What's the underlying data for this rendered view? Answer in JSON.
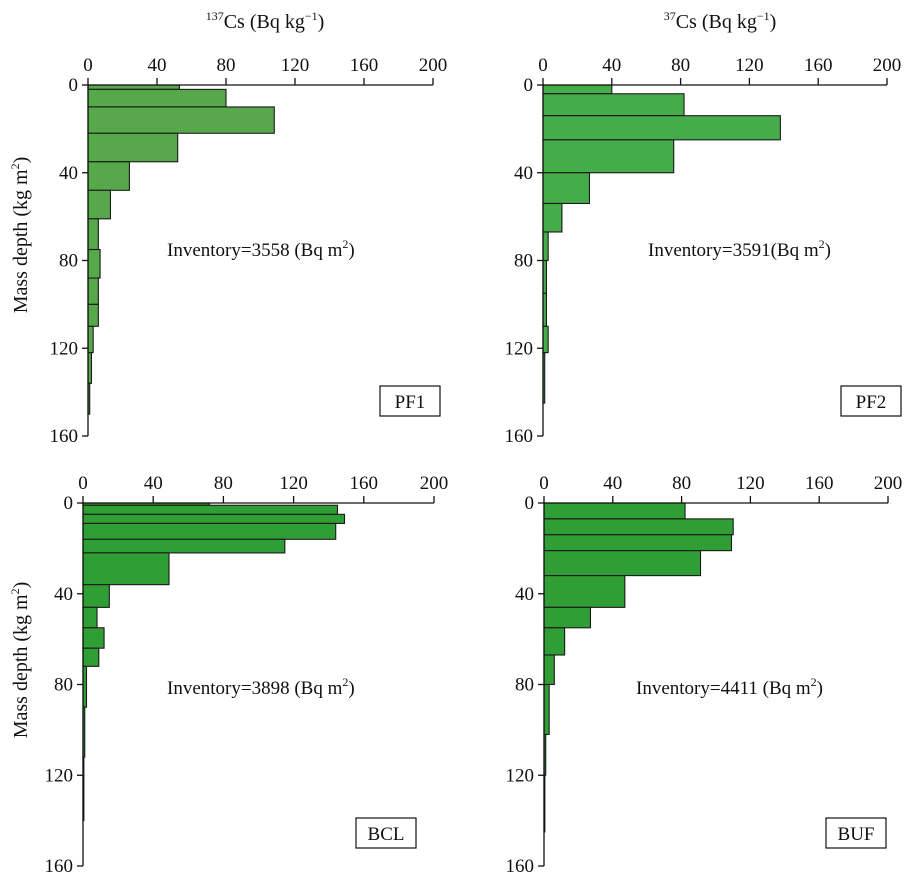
{
  "chart_data": [
    {
      "type": "bar",
      "orientation": "horizontal-step",
      "panel_label": "PF1",
      "inventory_label": "Inventory=3558 (Bq m",
      "inventory_sup": "2",
      "inventory_close": ")",
      "xlabel_sup": "137",
      "xlabel_main": "Cs (Bq kg",
      "xlabel_exp": "−1",
      "xlabel_close": ")",
      "ylabel_main": "Mass depth (kg m",
      "ylabel_sup": "2",
      "ylabel_close": ")",
      "xlim": [
        0,
        200
      ],
      "ylim": [
        0,
        160
      ],
      "x_ticks": [
        "0",
        "40",
        "80",
        "120",
        "160",
        "200"
      ],
      "y_ticks": [
        "0",
        "40",
        "80",
        "120",
        "160"
      ],
      "fill_color": "#56a84a",
      "bins": [
        {
          "top": 0,
          "bottom": 2,
          "value": 53
        },
        {
          "top": 2,
          "bottom": 10,
          "value": 80
        },
        {
          "top": 10,
          "bottom": 22,
          "value": 108
        },
        {
          "top": 22,
          "bottom": 35,
          "value": 52
        },
        {
          "top": 35,
          "bottom": 48,
          "value": 24
        },
        {
          "top": 48,
          "bottom": 61,
          "value": 13
        },
        {
          "top": 61,
          "bottom": 75,
          "value": 6
        },
        {
          "top": 75,
          "bottom": 88,
          "value": 7
        },
        {
          "top": 88,
          "bottom": 100,
          "value": 6
        },
        {
          "top": 100,
          "bottom": 110,
          "value": 6
        },
        {
          "top": 110,
          "bottom": 122,
          "value": 3
        },
        {
          "top": 122,
          "bottom": 136,
          "value": 2
        },
        {
          "top": 136,
          "bottom": 150,
          "value": 1
        }
      ]
    },
    {
      "type": "bar",
      "orientation": "horizontal-step",
      "panel_label": "PF2",
      "inventory_label": "Inventory=3591(Bq m",
      "inventory_sup": "2",
      "inventory_close": ")",
      "xlabel_sup": "37",
      "xlabel_main": "Cs (Bq kg",
      "xlabel_exp": "−1",
      "xlabel_close": ")",
      "xlim": [
        0,
        200
      ],
      "ylim": [
        0,
        160
      ],
      "x_ticks": [
        "0",
        "40",
        "80",
        "120",
        "160",
        "200"
      ],
      "y_ticks": [
        "0",
        "40",
        "80",
        "120",
        "160"
      ],
      "fill_color": "#44ad4a",
      "bins": [
        {
          "top": 0,
          "bottom": 4,
          "value": 40
        },
        {
          "top": 4,
          "bottom": 14,
          "value": 82
        },
        {
          "top": 14,
          "bottom": 25,
          "value": 138
        },
        {
          "top": 25,
          "bottom": 40,
          "value": 76
        },
        {
          "top": 40,
          "bottom": 54,
          "value": 27
        },
        {
          "top": 54,
          "bottom": 67,
          "value": 11
        },
        {
          "top": 67,
          "bottom": 80,
          "value": 3
        },
        {
          "top": 80,
          "bottom": 95,
          "value": 2
        },
        {
          "top": 95,
          "bottom": 110,
          "value": 2
        },
        {
          "top": 110,
          "bottom": 122,
          "value": 3
        },
        {
          "top": 122,
          "bottom": 145,
          "value": 1
        }
      ]
    },
    {
      "type": "bar",
      "orientation": "horizontal-step",
      "panel_label": "BCL",
      "inventory_label": "Inventory=3898 (Bq m",
      "inventory_sup": "2",
      "inventory_close": ")",
      "ylabel_main": "Mass depth (kg m",
      "ylabel_sup": "2",
      "ylabel_close": ")",
      "xlim": [
        0,
        200
      ],
      "ylim": [
        0,
        160
      ],
      "x_ticks": [
        "0",
        "40",
        "80",
        "120",
        "160",
        "200"
      ],
      "y_ticks": [
        "0",
        "40",
        "80",
        "120",
        "160"
      ],
      "fill_color": "#2f9e34",
      "bins": [
        {
          "top": 0,
          "bottom": 1,
          "value": 72
        },
        {
          "top": 1,
          "bottom": 5,
          "value": 145
        },
        {
          "top": 5,
          "bottom": 9,
          "value": 149
        },
        {
          "top": 9,
          "bottom": 16,
          "value": 144
        },
        {
          "top": 16,
          "bottom": 22,
          "value": 115
        },
        {
          "top": 22,
          "bottom": 36,
          "value": 49
        },
        {
          "top": 36,
          "bottom": 46,
          "value": 15
        },
        {
          "top": 46,
          "bottom": 55,
          "value": 8
        },
        {
          "top": 55,
          "bottom": 64,
          "value": 12
        },
        {
          "top": 64,
          "bottom": 72,
          "value": 9
        },
        {
          "top": 72,
          "bottom": 90,
          "value": 2
        },
        {
          "top": 90,
          "bottom": 112,
          "value": 1
        },
        {
          "top": 112,
          "bottom": 140,
          "value": 0.5
        }
      ]
    },
    {
      "type": "bar",
      "orientation": "horizontal-step",
      "panel_label": "BUF",
      "inventory_label": "Inventory=4411 (Bq m",
      "inventory_sup": "2",
      "inventory_close": ")",
      "xlim": [
        0,
        200
      ],
      "ylim": [
        0,
        160
      ],
      "x_ticks": [
        "0",
        "40",
        "80",
        "120",
        "160",
        "200"
      ],
      "y_ticks": [
        "0",
        "40",
        "80",
        "120",
        "160"
      ],
      "fill_color": "#2f9e34",
      "bins": [
        {
          "top": 0,
          "bottom": 7,
          "value": 82
        },
        {
          "top": 7,
          "bottom": 14,
          "value": 110
        },
        {
          "top": 14,
          "bottom": 21,
          "value": 109
        },
        {
          "top": 21,
          "bottom": 32,
          "value": 91
        },
        {
          "top": 32,
          "bottom": 46,
          "value": 47
        },
        {
          "top": 46,
          "bottom": 55,
          "value": 27
        },
        {
          "top": 55,
          "bottom": 67,
          "value": 12
        },
        {
          "top": 67,
          "bottom": 80,
          "value": 6
        },
        {
          "top": 80,
          "bottom": 102,
          "value": 3
        },
        {
          "top": 102,
          "bottom": 120,
          "value": 1
        },
        {
          "top": 120,
          "bottom": 145,
          "value": 0.5
        }
      ]
    }
  ]
}
